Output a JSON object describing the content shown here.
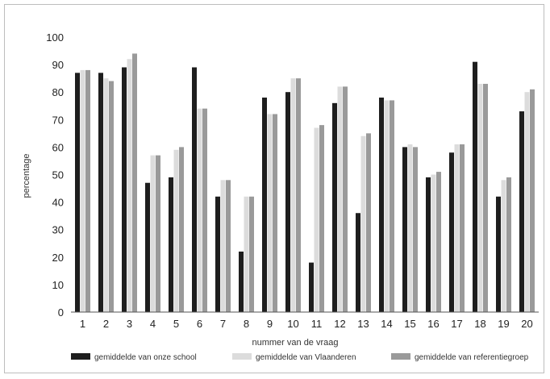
{
  "chart_data": {
    "type": "bar",
    "xlabel": "nummer van de vraag",
    "ylabel": "percentage",
    "ylim": [
      0,
      100
    ],
    "yticks": [
      0,
      10,
      20,
      30,
      40,
      50,
      60,
      70,
      80,
      90,
      100
    ],
    "categories": [
      "1",
      "2",
      "3",
      "4",
      "5",
      "6",
      "7",
      "8",
      "9",
      "10",
      "11",
      "12",
      "13",
      "14",
      "15",
      "16",
      "17",
      "18",
      "19",
      "20"
    ],
    "legend_position": "bottom",
    "grid": false,
    "series": [
      {
        "name": "gemiddelde van onze school",
        "color": "#1e1e1e",
        "values": [
          87,
          87,
          89,
          47,
          49,
          89,
          42,
          22,
          78,
          80,
          18,
          76,
          36,
          78,
          60,
          49,
          58,
          91,
          42,
          73
        ]
      },
      {
        "name": "gemiddelde van Vlaanderen",
        "color": "#dcdcdc",
        "values": [
          88,
          85,
          92,
          57,
          59,
          74,
          48,
          42,
          72,
          85,
          67,
          82,
          64,
          77,
          61,
          50,
          61,
          83,
          48,
          80
        ]
      },
      {
        "name": "gemiddelde van referentiegroep",
        "color": "#9a9a9a",
        "values": [
          88,
          84,
          94,
          57,
          60,
          74,
          48,
          42,
          72,
          85,
          68,
          82,
          65,
          77,
          60,
          51,
          61,
          83,
          49,
          81
        ]
      }
    ]
  }
}
